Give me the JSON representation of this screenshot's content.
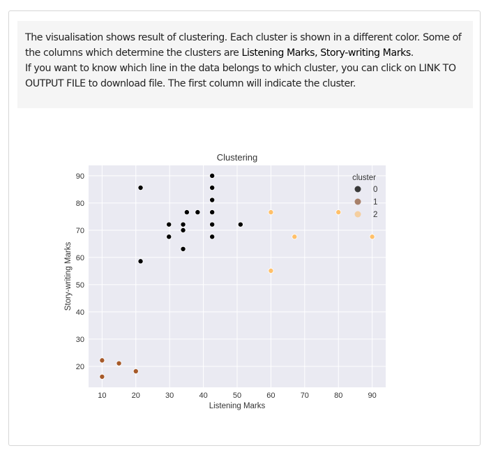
{
  "description": {
    "part1": "The visualisation shows result of clustering. Each cluster is shown in a different color. Some of the columns which determine the clusters are ",
    "columns": "Listening Marks, Story-writing Marks",
    "part2": ".",
    "part3": "If you want to know which line in the data belongs to which cluster, you can click on LINK TO OUTPUT FILE to download file. The first column will indicate the cluster."
  },
  "chart_data": {
    "type": "scatter",
    "title": "Clustering",
    "xlabel": "Listening Marks",
    "ylabel": "Story-writing Marks",
    "xlim": [
      6,
      94
    ],
    "ylim": [
      12.3,
      93.8
    ],
    "xticks": [
      10,
      20,
      30,
      40,
      50,
      60,
      70,
      80,
      90
    ],
    "yticks": [
      20,
      30,
      40,
      50,
      60,
      70,
      80,
      90
    ],
    "grid": true,
    "legend": {
      "title": "cluster",
      "placement": "top-right"
    },
    "series": [
      {
        "name": "0",
        "color": "#000000",
        "legend_color": "#3a3a3a",
        "points": [
          [
            21.4,
            85.6
          ],
          [
            21.4,
            58.6
          ],
          [
            29.8,
            72.1
          ],
          [
            29.8,
            67.6
          ],
          [
            34,
            72.1
          ],
          [
            34,
            70
          ],
          [
            34,
            63.1
          ],
          [
            35.1,
            76.6
          ],
          [
            38.3,
            76.6
          ],
          [
            42.6,
            90
          ],
          [
            42.6,
            85.6
          ],
          [
            42.6,
            81.1
          ],
          [
            42.6,
            76.6
          ],
          [
            42.6,
            72.1
          ],
          [
            42.6,
            67.6
          ],
          [
            51,
            72.1
          ]
        ]
      },
      {
        "name": "1",
        "color": "#a65a2a",
        "legend_color": "#a7806a",
        "points": [
          [
            10,
            22.2
          ],
          [
            10,
            16.2
          ],
          [
            15,
            21.1
          ],
          [
            20,
            18.2
          ]
        ]
      },
      {
        "name": "2",
        "color": "#ffc06a",
        "legend_color": "#f5cfa0",
        "points": [
          [
            60,
            76.6
          ],
          [
            60,
            55.1
          ],
          [
            67,
            67.6
          ],
          [
            80,
            76.6
          ],
          [
            90,
            67.6
          ]
        ]
      }
    ]
  }
}
